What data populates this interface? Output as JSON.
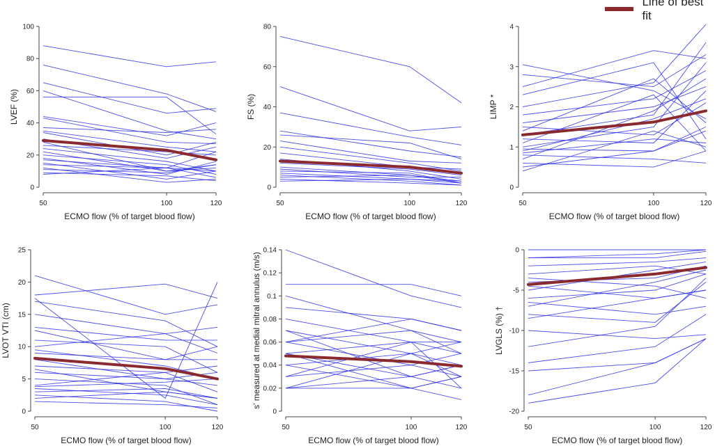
{
  "legend": {
    "label": "Line of best fit"
  },
  "colors": {
    "subject_line": "#2a2ee6",
    "fit_line": "#8b2a2e",
    "axis": "#444444"
  },
  "chart_data": [
    {
      "type": "line",
      "title": "",
      "ylabel": "LVEF (%)",
      "xlabel": "ECMO flow (% of target blood flow)",
      "x": [
        50,
        100,
        120
      ],
      "xticks": [
        "50",
        "100",
        "120"
      ],
      "ylim": [
        0,
        100
      ],
      "yticks": [
        "0",
        "20",
        "40",
        "60",
        "80",
        "100"
      ],
      "best_fit": [
        29,
        23,
        17
      ],
      "series": [
        {
          "values": [
            88,
            75,
            78
          ]
        },
        {
          "values": [
            76,
            58,
            47
          ]
        },
        {
          "values": [
            65,
            46,
            49
          ]
        },
        {
          "values": [
            60,
            35,
            30
          ]
        },
        {
          "values": [
            56,
            56,
            33
          ]
        },
        {
          "values": [
            44,
            32,
            40
          ]
        },
        {
          "values": [
            43,
            28,
            27
          ]
        },
        {
          "values": [
            37,
            34,
            36
          ]
        },
        {
          "values": [
            35,
            25,
            22
          ]
        },
        {
          "values": [
            34,
            20,
            28
          ]
        },
        {
          "values": [
            30,
            18,
            25
          ]
        },
        {
          "values": [
            28,
            10,
            14
          ]
        },
        {
          "values": [
            26,
            22,
            20
          ]
        },
        {
          "values": [
            24,
            16,
            10
          ]
        },
        {
          "values": [
            22,
            10,
            12
          ]
        },
        {
          "values": [
            20,
            14,
            8
          ]
        },
        {
          "values": [
            18,
            8,
            16
          ]
        },
        {
          "values": [
            17,
            12,
            22
          ]
        },
        {
          "values": [
            15,
            5,
            10
          ]
        },
        {
          "values": [
            14,
            12,
            6
          ]
        },
        {
          "values": [
            12,
            3,
            5
          ]
        },
        {
          "values": [
            11,
            9,
            14
          ]
        },
        {
          "values": [
            9,
            7,
            4
          ]
        },
        {
          "values": [
            8,
            12,
            10
          ]
        }
      ]
    },
    {
      "type": "line",
      "title": "",
      "ylabel": "FS (%)",
      "xlabel": "ECMO flow (% of target blood flow)",
      "x": [
        50,
        100,
        120
      ],
      "xticks": [
        "50",
        "100",
        "120"
      ],
      "ylim": [
        0,
        80
      ],
      "yticks": [
        "0",
        "20",
        "40",
        "60",
        "80"
      ],
      "best_fit": [
        13,
        10,
        7
      ],
      "series": [
        {
          "values": [
            75,
            60,
            42
          ]
        },
        {
          "values": [
            50,
            28,
            30
          ]
        },
        {
          "values": [
            37,
            25,
            21
          ]
        },
        {
          "values": [
            28,
            18,
            15
          ]
        },
        {
          "values": [
            23,
            13,
            12
          ]
        },
        {
          "values": [
            20,
            12,
            8
          ]
        },
        {
          "values": [
            17,
            10,
            9
          ]
        },
        {
          "values": [
            14,
            8,
            4
          ]
        },
        {
          "values": [
            12,
            9,
            6
          ]
        },
        {
          "values": [
            10,
            6,
            3
          ]
        },
        {
          "values": [
            9,
            5,
            5
          ]
        },
        {
          "values": [
            8,
            7,
            2
          ]
        },
        {
          "values": [
            7,
            4,
            3
          ]
        },
        {
          "values": [
            6,
            3,
            1
          ]
        },
        {
          "values": [
            5,
            6,
            2
          ]
        },
        {
          "values": [
            4,
            2,
            1
          ]
        },
        {
          "values": [
            3,
            4,
            2
          ]
        },
        {
          "values": [
            26,
            22,
            14
          ]
        }
      ]
    },
    {
      "type": "line",
      "title": "",
      "ylabel": "LIMP *",
      "xlabel": "ECMO flow (% of target blood flow)",
      "x": [
        50,
        100,
        120
      ],
      "xticks": [
        "50",
        "100",
        "120"
      ],
      "ylim": [
        0,
        4
      ],
      "yticks": [
        "0",
        "1",
        "2",
        "3",
        "4"
      ],
      "best_fit": [
        1.3,
        1.62,
        1.9
      ],
      "series": [
        {
          "values": [
            3.05,
            2.4,
            1.7
          ]
        },
        {
          "values": [
            2.5,
            3.4,
            3.2
          ]
        },
        {
          "values": [
            2.3,
            3.1,
            1.2
          ]
        },
        {
          "values": [
            2.0,
            2.6,
            4.05
          ]
        },
        {
          "values": [
            1.8,
            2.2,
            2.9
          ]
        },
        {
          "values": [
            1.6,
            2.0,
            2.5
          ]
        },
        {
          "values": [
            1.5,
            1.3,
            2.1
          ]
        },
        {
          "values": [
            1.4,
            2.7,
            1.6
          ]
        },
        {
          "values": [
            1.3,
            1.8,
            3.6
          ]
        },
        {
          "values": [
            1.2,
            1.1,
            2.4
          ]
        },
        {
          "values": [
            1.1,
            2.3,
            0.9
          ]
        },
        {
          "values": [
            1.0,
            1.5,
            3.1
          ]
        },
        {
          "values": [
            0.95,
            0.9,
            1.5
          ]
        },
        {
          "values": [
            0.9,
            1.7,
            2.2
          ]
        },
        {
          "values": [
            0.85,
            1.2,
            1.1
          ]
        },
        {
          "values": [
            0.8,
            0.7,
            0.6
          ]
        },
        {
          "values": [
            0.7,
            1.9,
            2.7
          ]
        },
        {
          "values": [
            0.6,
            0.5,
            0.9
          ]
        },
        {
          "values": [
            0.5,
            0.9,
            1.4
          ]
        },
        {
          "values": [
            0.4,
            1.4,
            1.0
          ]
        },
        {
          "values": [
            2.8,
            2.5,
            3.3
          ]
        }
      ]
    },
    {
      "type": "line",
      "title": "",
      "ylabel": "LVOT VTI (cm)",
      "xlabel": "ECMO flow (% of target blood flow)",
      "x": [
        50,
        100,
        120
      ],
      "xticks": [
        "50",
        "100",
        "120"
      ],
      "ylim": [
        0,
        25
      ],
      "yticks": [
        "0",
        "5",
        "10",
        "15",
        "20",
        "25"
      ],
      "best_fit": [
        8.2,
        6.6,
        5.0
      ],
      "series": [
        {
          "values": [
            21,
            15,
            16.5
          ]
        },
        {
          "values": [
            18,
            19.7,
            17.5
          ]
        },
        {
          "values": [
            17.5,
            2,
            20
          ]
        },
        {
          "values": [
            17,
            14,
            10
          ]
        },
        {
          "values": [
            13,
            11,
            11
          ]
        },
        {
          "values": [
            12.5,
            8,
            10
          ]
        },
        {
          "values": [
            11,
            10,
            6
          ]
        },
        {
          "values": [
            10,
            12,
            9
          ]
        },
        {
          "values": [
            9.5,
            7,
            5
          ]
        },
        {
          "values": [
            9,
            8,
            8
          ]
        },
        {
          "values": [
            8,
            5,
            4
          ]
        },
        {
          "values": [
            7,
            6,
            7
          ]
        },
        {
          "values": [
            6.5,
            3,
            2
          ]
        },
        {
          "values": [
            6,
            5,
            6
          ]
        },
        {
          "values": [
            5,
            4,
            1
          ]
        },
        {
          "values": [
            4,
            6,
            3
          ]
        },
        {
          "values": [
            3.8,
            4.5,
            5
          ]
        },
        {
          "values": [
            3.5,
            2.5,
            1
          ]
        },
        {
          "values": [
            3,
            3.5,
            2
          ]
        },
        {
          "values": [
            2.5,
            1.5,
            0
          ]
        },
        {
          "values": [
            2,
            3,
            2
          ]
        },
        {
          "values": [
            1.5,
            1,
            0.5
          ]
        },
        {
          "values": [
            15,
            12,
            13
          ]
        }
      ]
    },
    {
      "type": "line",
      "title": "",
      "ylabel": "s' measured at medial mitral annulus (m/s)",
      "xlabel": "ECMO flow (% of target blood flow)",
      "x": [
        50,
        100,
        120
      ],
      "xticks": [
        "50",
        "100",
        "120"
      ],
      "ylim": [
        0,
        0.14
      ],
      "yticks": [
        "0",
        "0.02",
        "0.04",
        "0.06",
        "0.08",
        "0.1",
        "0.12",
        "0.14"
      ],
      "best_fit": [
        0.048,
        0.043,
        0.039
      ],
      "series": [
        {
          "values": [
            0.14,
            0.1,
            0.09
          ]
        },
        {
          "values": [
            0.11,
            0.11,
            0.1
          ]
        },
        {
          "values": [
            0.1,
            0.07,
            0.05
          ]
        },
        {
          "values": [
            0.09,
            0.08,
            0.07
          ]
        },
        {
          "values": [
            0.08,
            0.06,
            0.06
          ]
        },
        {
          "values": [
            0.07,
            0.05,
            0.04
          ]
        },
        {
          "values": [
            0.07,
            0.03,
            0.02
          ]
        },
        {
          "values": [
            0.06,
            0.07,
            0.06
          ]
        },
        {
          "values": [
            0.06,
            0.04,
            0.03
          ]
        },
        {
          "values": [
            0.05,
            0.06,
            0.05
          ]
        },
        {
          "values": [
            0.05,
            0.03,
            0.04
          ]
        },
        {
          "values": [
            0.04,
            0.05,
            0.06
          ]
        },
        {
          "values": [
            0.04,
            0.02,
            0.03
          ]
        },
        {
          "values": [
            0.03,
            0.04,
            0.05
          ]
        },
        {
          "values": [
            0.03,
            0.06,
            0.02
          ]
        },
        {
          "values": [
            0.02,
            0.03,
            0.04
          ]
        },
        {
          "values": [
            0.02,
            0.05,
            0.03
          ]
        },
        {
          "values": [
            0.02,
            0.02,
            0.01
          ]
        },
        {
          "values": [
            0.06,
            0.08,
            0.07
          ]
        },
        {
          "values": [
            0.05,
            0.02,
            0.03
          ]
        }
      ]
    },
    {
      "type": "line",
      "title": "",
      "ylabel": "LVGLS (%) †",
      "xlabel": "ECMO flow (% of target blood flow)",
      "x": [
        50,
        100,
        120
      ],
      "xticks": [
        "50",
        "100",
        "120"
      ],
      "ylim": [
        -20,
        0
      ],
      "yticks": [
        "-20",
        "-15",
        "-10",
        "-5",
        "0"
      ],
      "best_fit": [
        -4.3,
        -3.0,
        -2.2
      ],
      "series": [
        {
          "values": [
            0,
            0,
            0
          ]
        },
        {
          "values": [
            -1,
            -0.5,
            0
          ]
        },
        {
          "values": [
            -1,
            -1,
            -0.2
          ]
        },
        {
          "values": [
            -2,
            -1.5,
            -1
          ]
        },
        {
          "values": [
            -3,
            -2,
            -3
          ]
        },
        {
          "values": [
            -4,
            -3.5,
            -2
          ]
        },
        {
          "values": [
            -4.5,
            -6,
            -5
          ]
        },
        {
          "values": [
            -5,
            -2.5,
            -1.5
          ]
        },
        {
          "values": [
            -6,
            -5,
            -3
          ]
        },
        {
          "values": [
            -7,
            -4,
            -2.5
          ]
        },
        {
          "values": [
            -8,
            -9,
            -4
          ]
        },
        {
          "values": [
            -8.5,
            -6,
            -5
          ]
        },
        {
          "values": [
            -10,
            -11,
            -10.5
          ]
        },
        {
          "values": [
            -12,
            -9.5,
            -3.5
          ]
        },
        {
          "values": [
            -14,
            -12,
            -8
          ]
        },
        {
          "values": [
            -15,
            -14,
            -11
          ]
        },
        {
          "values": [
            -18,
            -14,
            -11
          ]
        },
        {
          "values": [
            -19,
            -16.5,
            -11
          ]
        },
        {
          "values": [
            -3.5,
            -4.5,
            -6
          ]
        },
        {
          "values": [
            -6.5,
            -8,
            -7
          ]
        }
      ]
    }
  ]
}
